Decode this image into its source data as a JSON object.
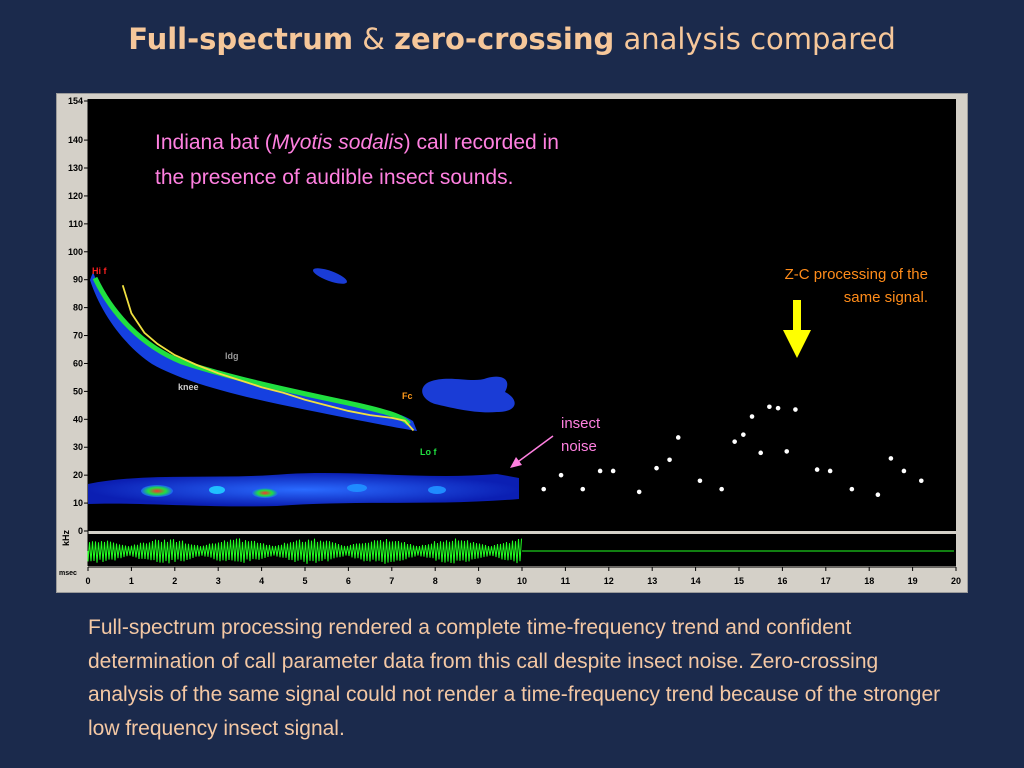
{
  "slide": {
    "title": {
      "part1": "Full-spectrum",
      "part2": " & ",
      "part3": "zero-crossing",
      "part4": " analysis compared"
    },
    "caption": "Full-spectrum processing rendered a complete time-frequency trend and confident determination of call parameter data from this call despite insect noise. Zero-crossing analysis of the same signal could not render a time-frequency trend because of the stronger low frequency insect signal."
  },
  "colors": {
    "background": "#1b2a4c",
    "title_text": "#f6c79a",
    "caption_text": "#f4c8a4",
    "pink_text": "#ff80e0",
    "orange_text": "#ff8c1a",
    "arrow_yellow": "#ffff00",
    "waveform_green": "#22ff22",
    "call_trace": "#f0e040"
  },
  "annotations": {
    "species_line1_pre": "Indiana bat (",
    "species_italic": "Myotis sodalis",
    "species_line1_post": ") call recorded in",
    "species_line2": "the presence of audible insect sounds.",
    "zc_line1": "Z-C processing of the",
    "zc_line2": "same signal.",
    "insect_line1": "insect",
    "insect_line2": "noise",
    "hi_f": "Hi f",
    "ldg": "ldg",
    "knee": "knee",
    "fc": "Fc",
    "lo_f": "Lo f",
    "icons": [
      "arrow-down-icon",
      "arrow-left-down-icon"
    ]
  },
  "chart_data": {
    "type": "scatter",
    "title": "",
    "xlabel": "msec",
    "ylabel": "kHz",
    "xlim": [
      0,
      20
    ],
    "ylim": [
      0,
      154
    ],
    "x_ticks": [
      0,
      1,
      2,
      3,
      4,
      5,
      6,
      7,
      8,
      9,
      10,
      11,
      12,
      13,
      14,
      15,
      16,
      17,
      18,
      19,
      20
    ],
    "y_ticks": [
      0,
      10,
      20,
      30,
      40,
      50,
      60,
      70,
      80,
      90,
      100,
      110,
      120,
      130,
      140,
      154
    ],
    "grid": false,
    "series": [
      {
        "type": "line",
        "x": [
          0.8,
          1.0,
          1.3,
          1.6,
          2.0,
          2.5,
          3.0,
          3.5,
          4.0,
          4.5,
          5.0,
          5.5,
          6.0,
          6.5,
          7.0,
          7.3,
          7.5
        ],
        "y": [
          88,
          78,
          71,
          67,
          63,
          59.5,
          56.5,
          54,
          51.5,
          49.5,
          47,
          45,
          43,
          41.5,
          40.5,
          39.5,
          36
        ]
      },
      {
        "type": "scatter",
        "x": [
          10.5,
          10.9,
          11.4,
          11.8,
          12.1,
          12.7,
          13.1,
          13.4,
          13.6,
          14.1,
          14.6,
          14.9,
          15.1,
          15.3,
          15.5,
          15.7,
          15.9,
          16.1,
          16.3,
          16.8,
          17.1,
          17.6,
          18.2,
          18.5,
          18.8,
          19.2
        ],
        "y": [
          15,
          20,
          15,
          21.5,
          21.5,
          14,
          22.5,
          25.5,
          33.5,
          18,
          15,
          32,
          34.5,
          41,
          28,
          44.5,
          44,
          28.5,
          43.5,
          22,
          21.5,
          15,
          13,
          26,
          21.5,
          18
        ]
      }
    ]
  }
}
